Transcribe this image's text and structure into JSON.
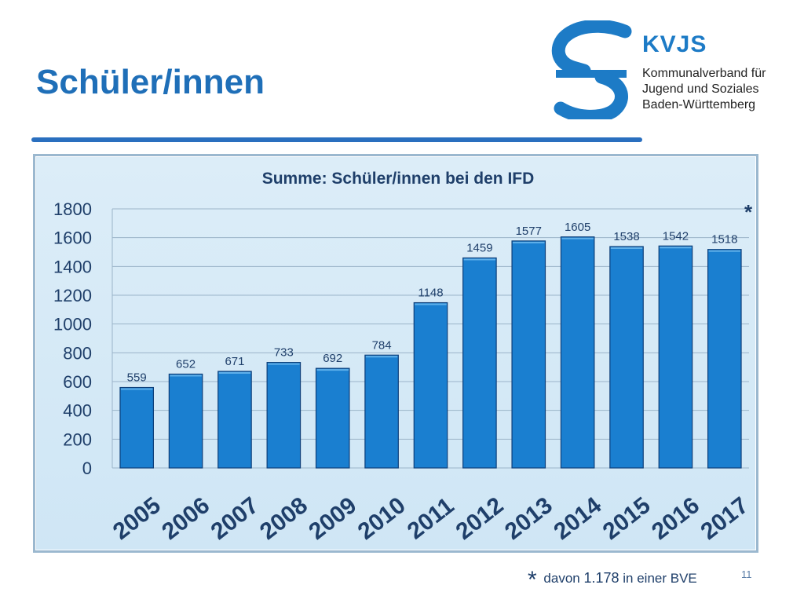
{
  "slide": {
    "title": "Schüler/innen",
    "page_number": "11"
  },
  "logo": {
    "name": "KVJS",
    "line1": "Kommunalverband für",
    "line2": "Jugend und Soziales",
    "line3": "Baden-Württemberg"
  },
  "footnote": {
    "star": "*",
    "text_before": "davon",
    "number": "1.178",
    "text_after": "in einer BVE"
  },
  "chart_data": {
    "type": "bar",
    "title": "Summe: Schüler/innen bei den IFD",
    "categories": [
      "2005",
      "2006",
      "2007",
      "2008",
      "2009",
      "2010",
      "2011",
      "2012",
      "2013",
      "2014",
      "2015",
      "2016",
      "2017"
    ],
    "values": [
      559,
      652,
      671,
      733,
      692,
      784,
      1148,
      1459,
      1577,
      1605,
      1538,
      1542,
      1518
    ],
    "ylim": [
      0,
      1800
    ],
    "yticks": [
      0,
      200,
      400,
      600,
      800,
      1000,
      1200,
      1400,
      1600,
      1800
    ],
    "annotation": "*",
    "grid": true,
    "legend": "none",
    "colors": {
      "bar": "#1a7fd0",
      "bar_edge": "#0d3f7a",
      "text": "#1f3f6a",
      "grid": "#9bb4c9"
    }
  }
}
